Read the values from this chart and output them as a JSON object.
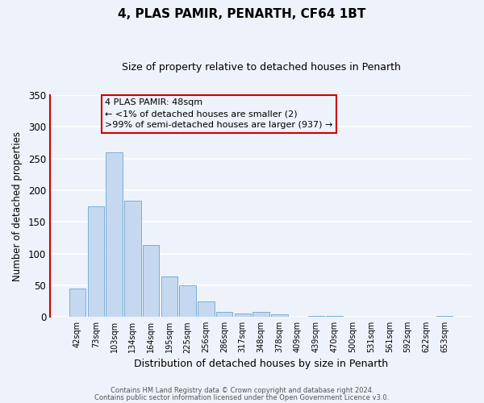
{
  "title": "4, PLAS PAMIR, PENARTH, CF64 1BT",
  "subtitle": "Size of property relative to detached houses in Penarth",
  "xlabel": "Distribution of detached houses by size in Penarth",
  "ylabel": "Number of detached properties",
  "categories": [
    "42sqm",
    "73sqm",
    "103sqm",
    "134sqm",
    "164sqm",
    "195sqm",
    "225sqm",
    "256sqm",
    "286sqm",
    "317sqm",
    "348sqm",
    "378sqm",
    "409sqm",
    "439sqm",
    "470sqm",
    "500sqm",
    "531sqm",
    "561sqm",
    "592sqm",
    "622sqm",
    "653sqm"
  ],
  "values": [
    45,
    175,
    260,
    184,
    113,
    64,
    50,
    25,
    8,
    5,
    8,
    4,
    0,
    2,
    1,
    0,
    0,
    0,
    0,
    0,
    2
  ],
  "bar_color": "#c5d8f0",
  "bar_edge_color": "#7bafd4",
  "ylim": [
    0,
    350
  ],
  "yticks": [
    0,
    50,
    100,
    150,
    200,
    250,
    300,
    350
  ],
  "bg_color": "#eef2fa",
  "grid_color": "#ffffff",
  "annotation_line1": "4 PLAS PAMIR: 48sqm",
  "annotation_line2": "← <1% of detached houses are smaller (2)",
  "annotation_line3": ">99% of semi-detached houses are larger (937) →",
  "annotation_box_edge": "#cc0000",
  "left_spine_color": "#cc0000",
  "footer_line1": "Contains HM Land Registry data © Crown copyright and database right 2024.",
  "footer_line2": "Contains public sector information licensed under the Open Government Licence v3.0."
}
